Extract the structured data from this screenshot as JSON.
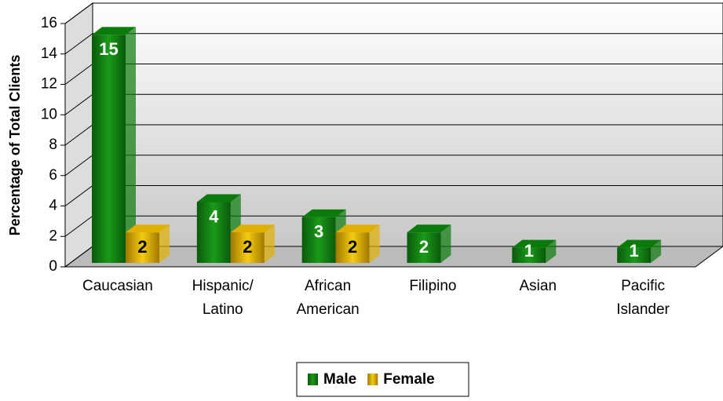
{
  "chart_data": {
    "type": "bar3d",
    "y_label": "Percentage of Total Clients",
    "categories": [
      "Caucasian",
      "Hispanic/ Latino",
      "African American",
      "Filipino",
      "Asian",
      "Pacific Islander"
    ],
    "series": [
      {
        "name": "Male",
        "color": "#0a7a0a",
        "values": [
          15,
          4,
          3,
          2,
          1,
          1
        ]
      },
      {
        "name": "Female",
        "color": "#e0b000",
        "values": [
          2,
          2,
          2,
          null,
          null,
          null
        ]
      }
    ],
    "ylim": [
      0,
      16
    ],
    "yticks": [
      0,
      2,
      4,
      6,
      8,
      10,
      12,
      14,
      16
    ],
    "grid": true,
    "legend": "bottom"
  }
}
